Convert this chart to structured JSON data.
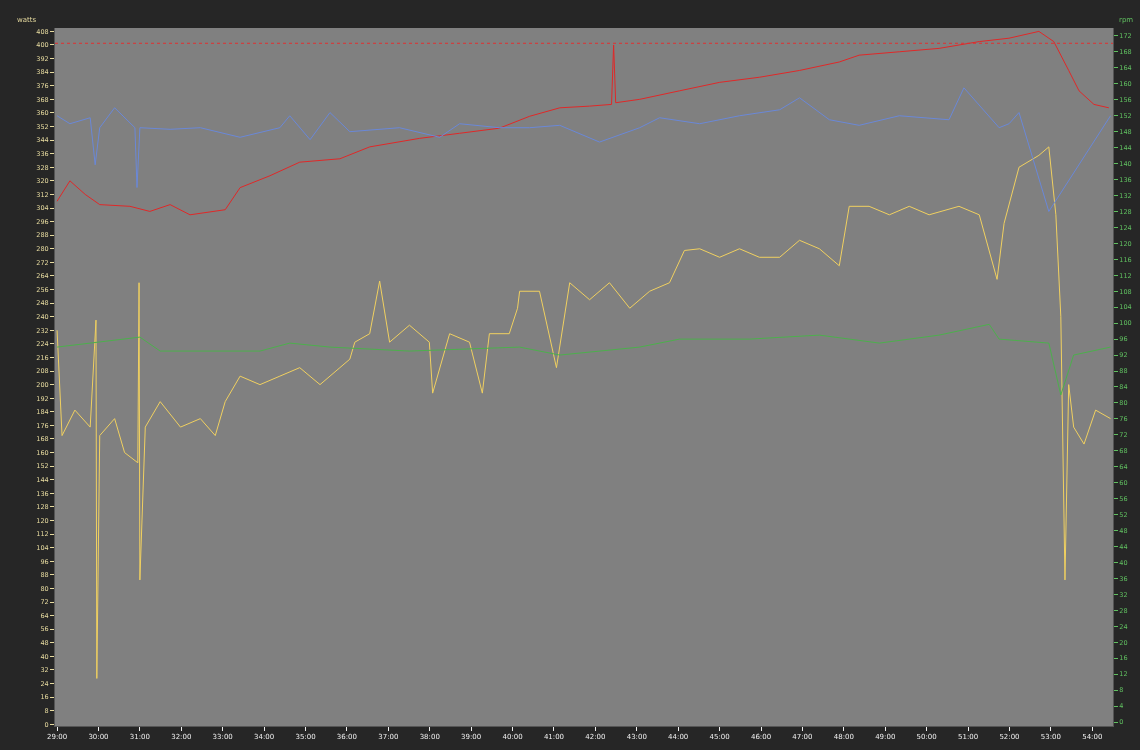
{
  "chart_data": {
    "type": "line",
    "ylabel": "watts",
    "y2label": "rpm",
    "xlim": [
      28.95,
      54.5
    ],
    "xticks": [
      {
        "value": 29,
        "label": "29:00"
      },
      {
        "value": 30,
        "label": "30:00"
      },
      {
        "value": 31,
        "label": "31:00"
      },
      {
        "value": 32,
        "label": "32:00"
      },
      {
        "value": 33,
        "label": "33:00"
      },
      {
        "value": 34,
        "label": "34:00"
      },
      {
        "value": 35,
        "label": "35:00"
      },
      {
        "value": 36,
        "label": "36:00"
      },
      {
        "value": 37,
        "label": "37:00"
      },
      {
        "value": 38,
        "label": "38:00"
      },
      {
        "value": 39,
        "label": "39:00"
      },
      {
        "value": 40,
        "label": "40:00"
      },
      {
        "value": 41,
        "label": "41:00"
      },
      {
        "value": 42,
        "label": "42:00"
      },
      {
        "value": 43,
        "label": "43:00"
      },
      {
        "value": 44,
        "label": "44:00"
      },
      {
        "value": 45,
        "label": "45:00"
      },
      {
        "value": 46,
        "label": "46:00"
      },
      {
        "value": 47,
        "label": "47:00"
      },
      {
        "value": 48,
        "label": "48:00"
      },
      {
        "value": 49,
        "label": "49:00"
      },
      {
        "value": 50,
        "label": "50:00"
      },
      {
        "value": 51,
        "label": "51:00"
      },
      {
        "value": 52,
        "label": "52:00"
      },
      {
        "value": 53,
        "label": "53:00"
      },
      {
        "value": 54,
        "label": "54:00"
      }
    ],
    "ylim": [
      -1,
      410
    ],
    "yticks": [
      0,
      8,
      16,
      24,
      32,
      40,
      48,
      56,
      64,
      72,
      80,
      88,
      96,
      104,
      112,
      120,
      128,
      136,
      144,
      152,
      160,
      168,
      176,
      184,
      192,
      200,
      208,
      216,
      224,
      232,
      240,
      248,
      256,
      264,
      272,
      280,
      288,
      296,
      304,
      312,
      320,
      328,
      336,
      344,
      352,
      360,
      368,
      376,
      384,
      392,
      400,
      408
    ],
    "y2lim": [
      -1,
      174
    ],
    "y2ticks": [
      0,
      4,
      8,
      12,
      16,
      20,
      24,
      28,
      32,
      36,
      40,
      44,
      48,
      52,
      56,
      60,
      64,
      68,
      72,
      76,
      80,
      84,
      88,
      92,
      96,
      100,
      104,
      108,
      112,
      116,
      120,
      124,
      128,
      132,
      136,
      140,
      144,
      148,
      152,
      156,
      160,
      164,
      168,
      172
    ],
    "ref_lines": [
      {
        "axis": "y",
        "value": 401,
        "color": "#e03030",
        "line_style": "dotted"
      }
    ],
    "marker": "none",
    "line_style": "solid",
    "series": [
      {
        "color": "#f0d060",
        "axis": "y",
        "x": [
          29.0,
          29.12,
          29.43,
          29.8,
          29.94,
          29.96,
          30.03,
          30.39,
          30.63,
          30.95,
          30.98,
          31.0,
          31.13,
          31.49,
          31.98,
          32.46,
          32.82,
          33.06,
          33.42,
          33.9,
          34.38,
          34.86,
          35.35,
          35.83,
          36.07,
          36.19,
          36.55,
          36.79,
          37.03,
          37.51,
          37.99,
          38.07,
          38.48,
          38.96,
          39.27,
          39.44,
          39.92,
          40.12,
          40.17,
          40.65,
          41.06,
          41.38,
          41.86,
          42.34,
          42.83,
          43.31,
          43.79,
          44.15,
          44.52,
          45.0,
          45.48,
          45.96,
          46.45,
          46.93,
          47.41,
          47.89,
          48.13,
          48.61,
          49.1,
          49.58,
          50.06,
          50.78,
          51.27,
          51.7,
          51.87,
          52.23,
          52.71,
          52.95,
          53.12,
          53.24,
          53.34,
          53.43,
          53.55,
          53.8,
          54.08,
          54.44
        ],
        "values": [
          232,
          170,
          185,
          175,
          238,
          27,
          170,
          180,
          160,
          154,
          260,
          85,
          175,
          190,
          175,
          180,
          170,
          190,
          205,
          200,
          205,
          210,
          200,
          210,
          215,
          225,
          230,
          261,
          225,
          235,
          225,
          195,
          230,
          225,
          195,
          230,
          230,
          245,
          255,
          255,
          210,
          260,
          250,
          260,
          245,
          255,
          260,
          279,
          280,
          275,
          280,
          275,
          275,
          285,
          280,
          270,
          305,
          305,
          300,
          305,
          300,
          305,
          300,
          262,
          295,
          328,
          335,
          340,
          300,
          240,
          85,
          200,
          175,
          165,
          185,
          180
        ]
      },
      {
        "color": "#4cb04c",
        "axis": "y2",
        "x": [
          29.0,
          31.0,
          31.49,
          33.9,
          34.62,
          35.59,
          37.51,
          40.17,
          41.14,
          43.07,
          44.03,
          45.72,
          47.41,
          48.86,
          50.3,
          51.51,
          51.75,
          52.95,
          53.24,
          53.55,
          54.44
        ],
        "values": [
          94,
          96.5,
          93,
          93,
          95,
          94,
          93,
          94,
          92,
          94,
          96,
          96,
          97,
          95,
          97,
          99.7,
          96,
          95,
          82,
          92,
          94
        ]
      },
      {
        "color": "#e02828",
        "axis": "y",
        "x": [
          29.0,
          29.31,
          29.68,
          30.03,
          30.76,
          31.24,
          31.73,
          32.21,
          33.06,
          33.42,
          34.14,
          34.86,
          35.83,
          36.55,
          37.75,
          38.72,
          39.68,
          40.41,
          41.14,
          41.86,
          42.39,
          42.44,
          42.49,
          43.07,
          44.03,
          45.0,
          45.96,
          46.93,
          47.89,
          48.37,
          49.34,
          50.3,
          51.27,
          51.99,
          52.71,
          53.07,
          53.43,
          53.68,
          54.04,
          54.4
        ],
        "values": [
          308,
          320,
          312,
          306,
          305,
          302,
          306,
          300,
          303,
          316,
          323,
          331,
          333,
          340,
          345,
          348,
          351,
          358,
          363,
          364,
          365,
          400,
          366,
          368,
          373,
          378,
          381,
          385,
          390,
          394,
          396,
          398,
          402,
          404,
          408,
          402,
          385,
          373,
          365,
          363
        ]
      },
      {
        "color": "#6a88d8",
        "axis": "y2",
        "x": [
          29.0,
          29.31,
          29.8,
          29.92,
          30.03,
          30.39,
          30.88,
          30.93,
          31.0,
          31.73,
          32.46,
          33.42,
          34.38,
          34.62,
          35.11,
          35.59,
          36.07,
          37.27,
          38.24,
          38.72,
          39.68,
          40.41,
          41.14,
          42.1,
          43.07,
          43.55,
          44.52,
          45.48,
          46.45,
          46.93,
          47.65,
          48.37,
          49.34,
          50.54,
          50.9,
          51.75,
          51.99,
          52.23,
          52.95,
          54.44
        ],
        "values": [
          152,
          150,
          151.5,
          139.7,
          149,
          154,
          149,
          134,
          149,
          148.6,
          149,
          146.6,
          149,
          152,
          146,
          152.8,
          148,
          149,
          146.6,
          150,
          149,
          149,
          149.6,
          145.4,
          149,
          151.5,
          150,
          152,
          153.5,
          156.5,
          151,
          149.6,
          152,
          151,
          159,
          149,
          150,
          152.8,
          128,
          152
        ]
      }
    ]
  }
}
